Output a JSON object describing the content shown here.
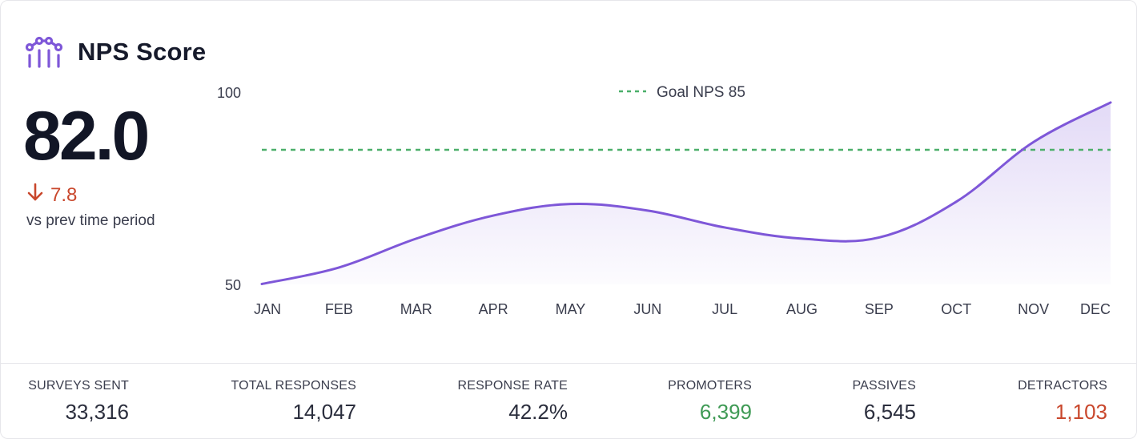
{
  "header": {
    "title": "NPS Score",
    "icon": "line-chart-icon",
    "accent_color": "#7e57d8"
  },
  "summary": {
    "value": "82.0",
    "delta": "7.8",
    "delta_direction": "down",
    "delta_color": "#c9472c",
    "caption": "vs prev time period"
  },
  "chart_data": {
    "type": "area",
    "categories": [
      "JAN",
      "FEB",
      "MAR",
      "APR",
      "MAY",
      "JUN",
      "JUL",
      "AUG",
      "SEP",
      "OCT",
      "NOV",
      "DEC"
    ],
    "series": [
      {
        "values": [
          50.1,
          54.4,
          61.9,
          67.9,
          70.9,
          69.2,
          64.8,
          61.9,
          62.2,
          71.5,
          87.0,
          97.3
        ]
      }
    ],
    "goal_line": {
      "value": 85,
      "label": "Goal NPS 85",
      "color": "#4caf6a"
    },
    "y_ticks": [
      "50",
      "100"
    ],
    "ylim": [
      50,
      100
    ],
    "line_color": "#7e57d8",
    "legend_position": "top-center",
    "grid": false
  },
  "stats": [
    {
      "label": "SURVEYS SENT",
      "value": "33,316",
      "color": "#2b2e3d"
    },
    {
      "label": "TOTAL RESPONSES",
      "value": "14,047",
      "color": "#2b2e3d"
    },
    {
      "label": "RESPONSE RATE",
      "value": "42.2%",
      "color": "#2b2e3d"
    },
    {
      "label": "PROMOTERS",
      "value": "6,399",
      "color": "#3f9a55"
    },
    {
      "label": "PASSIVES",
      "value": "6,545",
      "color": "#2b2e3d"
    },
    {
      "label": "DETRACTORS",
      "value": "1,103",
      "color": "#c9472c"
    }
  ]
}
